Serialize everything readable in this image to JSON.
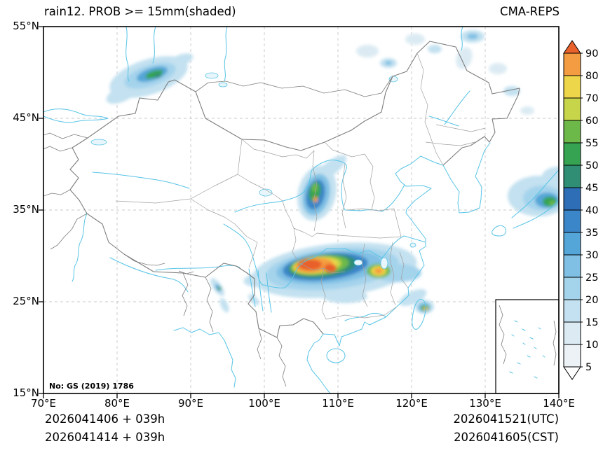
{
  "header": {
    "title": "rain12. PROB >= 15mm(shaded)",
    "brand": "CMA-REPS"
  },
  "axes": {
    "x_ticks": [
      "70°E",
      "80°E",
      "90°E",
      "100°E",
      "110°E",
      "120°E",
      "130°E",
      "140°E"
    ],
    "y_ticks": [
      "55°N",
      "45°N",
      "35°N",
      "25°N",
      "15°N"
    ]
  },
  "colorbar": {
    "levels": [
      5,
      10,
      15,
      20,
      25,
      30,
      35,
      40,
      45,
      50,
      55,
      60,
      70,
      80,
      90
    ],
    "colors": [
      "#ffffff",
      "#edf2f6",
      "#dcebf3",
      "#c3e1f0",
      "#a4d3ec",
      "#7fc0e4",
      "#55a6d8",
      "#3b86c8",
      "#2e6eb6",
      "#2f8e74",
      "#35a351",
      "#6cb94a",
      "#c6d549",
      "#eed64a",
      "#f49c41",
      "#e9612b"
    ]
  },
  "map": {
    "license": "No: GS (2019) 1786"
  },
  "footer": {
    "init_utc": "2026041406 + 039h",
    "init_cst": "2026041414 + 039h",
    "valid_utc": "2026041521(UTC)",
    "valid_cst": "2026041605(CST)"
  },
  "palette": {
    "background": "#ffffff",
    "text": "#000000",
    "border": "#7d7d7d",
    "province": "#a0a0a0",
    "water": "#58c4e6",
    "waterfill": "#e8f6fb",
    "grid": "#c8c8c8"
  }
}
